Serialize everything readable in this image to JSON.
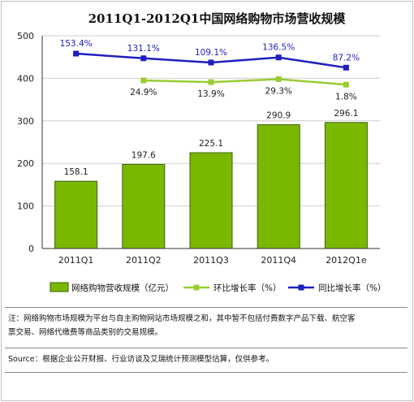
{
  "chart_data": {
    "type": "bar+line",
    "title": "2011Q1-2012Q1中国网络购物市场营收规模",
    "categories": [
      "2011Q1",
      "2011Q2",
      "2011Q3",
      "2011Q4",
      "2012Q1e"
    ],
    "ylim": [
      0,
      500
    ],
    "yticks": [
      0,
      100,
      200,
      300,
      400,
      500
    ],
    "bars": {
      "name": "网络购物营收规模（亿元）",
      "color": "#7ab800",
      "values": [
        158.1,
        197.6,
        225.1,
        290.9,
        296.1
      ],
      "labels": [
        "158.1",
        "197.6",
        "225.1",
        "290.9",
        "296.1"
      ]
    },
    "line_qoq": {
      "name": "环比增长率（%）",
      "color": "#99cc33",
      "values": [
        null,
        24.9,
        13.9,
        29.3,
        1.8
      ],
      "labels": [
        "",
        "24.9%",
        "13.9%",
        "29.3%",
        "1.8%"
      ],
      "plot_positions": [
        null,
        395,
        391,
        398,
        385
      ]
    },
    "line_yoy": {
      "name": "同比增长率（%）",
      "color": "#1f1fbf",
      "values": [
        153.4,
        131.1,
        109.1,
        136.5,
        87.2
      ],
      "labels": [
        "153.4%",
        "131.1%",
        "109.1%",
        "136.5%",
        "87.2%"
      ],
      "plot_positions": [
        458,
        447,
        437,
        449,
        425
      ]
    },
    "grid": "horizontal",
    "legend_position": "bottom"
  },
  "notes": {
    "line1": "注：网络购物市场规模为平台与自主购物网站市场规模之和，其中暂不包括付费数字产品下载、航空客",
    "line2": "票交易、网络代缴费等商品类别的交易规模。",
    "source": "Source：根据企业公开财报、行业访谈及艾瑞统计预测模型估算，仅供参考。"
  }
}
